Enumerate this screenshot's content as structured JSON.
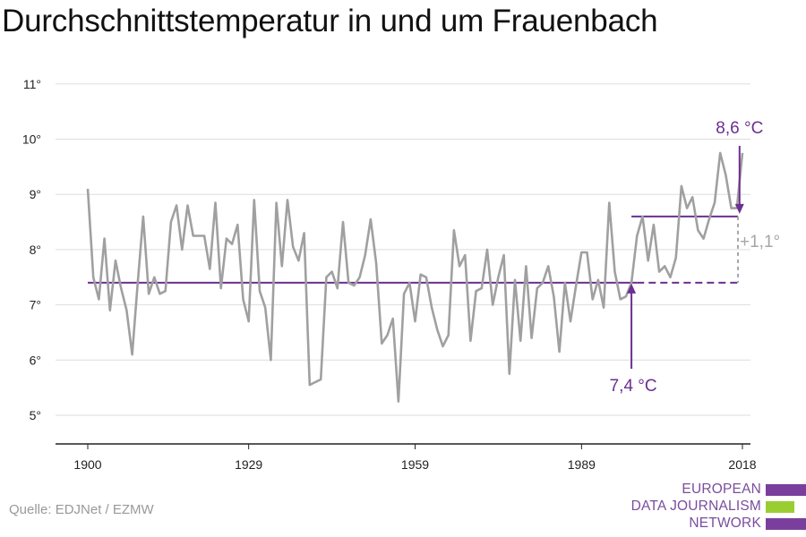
{
  "title": "Durchschnittstemperatur in und um Frauenbach",
  "source": "Quelle: EDJNet / EZMW",
  "logo": {
    "lines": [
      "EUROPEAN",
      "DATA JOURNALISM",
      "NETWORK"
    ],
    "colors": [
      "#7a3f9d",
      "#9acd32",
      "#7a3f9d"
    ]
  },
  "colors": {
    "series": "#a0a0a0",
    "accent": "#6b2f91",
    "grid": "#dddddd",
    "delta": "#a6a6a6"
  },
  "chart_data": {
    "type": "line",
    "title": "Durchschnittstemperatur in und um Frauenbach",
    "xlabel": "",
    "ylabel": "",
    "x_ticks": [
      1900,
      1929,
      1959,
      1989,
      2018
    ],
    "y_ticks": [
      5,
      6,
      7,
      8,
      9,
      10,
      11
    ],
    "y_tick_labels": [
      "5°",
      "6°",
      "7°",
      "8°",
      "9°",
      "10°",
      "11°"
    ],
    "xlim": [
      1900,
      2018
    ],
    "ylim": [
      4.5,
      11.3
    ],
    "grid": true,
    "series": [
      {
        "x": [
          1900,
          1901,
          1902,
          1903,
          1904,
          1905,
          1906,
          1907,
          1908,
          1909,
          1910,
          1911,
          1912,
          1913,
          1914,
          1915,
          1916,
          1917,
          1918,
          1919,
          1920,
          1921,
          1922,
          1923,
          1924,
          1925,
          1926,
          1927,
          1928,
          1929,
          1930,
          1931,
          1932,
          1933,
          1934,
          1935,
          1936,
          1937,
          1938,
          1939,
          1940,
          1941,
          1942,
          1943,
          1944,
          1945,
          1946,
          1947,
          1948,
          1949,
          1950,
          1951,
          1952,
          1953,
          1954,
          1955,
          1956,
          1957,
          1958,
          1959,
          1960,
          1961,
          1962,
          1963,
          1964,
          1965,
          1966,
          1967,
          1968,
          1969,
          1970,
          1971,
          1972,
          1973,
          1974,
          1975,
          1976,
          1977,
          1978,
          1979,
          1980,
          1981,
          1982,
          1983,
          1984,
          1985,
          1986,
          1987,
          1988,
          1989,
          1990,
          1991,
          1992,
          1993,
          1994,
          1995,
          1996,
          1997,
          1998,
          1999,
          2000,
          2001,
          2002,
          2003,
          2004,
          2005,
          2006,
          2007,
          2008,
          2009,
          2010,
          2011,
          2012,
          2013,
          2014,
          2015,
          2016,
          2017,
          2018
        ],
        "values": [
          9.1,
          7.5,
          7.1,
          8.2,
          6.9,
          7.8,
          7.3,
          6.9,
          6.1,
          7.4,
          8.6,
          7.2,
          7.5,
          7.2,
          7.25,
          8.5,
          8.8,
          8.0,
          8.8,
          8.25,
          8.25,
          8.25,
          7.65,
          8.85,
          7.3,
          8.2,
          8.1,
          8.45,
          7.1,
          6.7,
          8.9,
          7.25,
          6.95,
          6.0,
          8.85,
          7.7,
          8.9,
          8.05,
          7.8,
          8.3,
          5.55,
          5.6,
          5.65,
          7.5,
          7.6,
          7.3,
          8.5,
          7.4,
          7.35,
          7.5,
          7.9,
          8.55,
          7.75,
          6.3,
          6.45,
          6.75,
          5.25,
          7.2,
          7.4,
          6.7,
          7.55,
          7.5,
          6.95,
          6.55,
          6.25,
          6.45,
          8.35,
          7.7,
          7.9,
          6.35,
          7.25,
          7.3,
          8.0,
          7.0,
          7.5,
          7.9,
          5.75,
          7.45,
          6.35,
          7.7,
          6.4,
          7.3,
          7.4,
          7.7,
          7.15,
          6.15,
          7.4,
          6.7,
          7.35,
          7.95,
          7.95,
          7.1,
          7.45,
          6.95,
          8.85,
          7.6,
          7.1,
          7.15,
          7.4,
          8.25,
          8.6,
          7.8,
          8.45,
          7.6,
          7.7,
          7.5,
          7.85,
          9.15,
          8.75,
          8.95,
          8.35,
          8.2,
          8.55,
          8.85,
          9.75,
          9.35,
          8.75,
          8.75,
          9.75
        ]
      }
    ],
    "baseline": 7.4,
    "baseline_label": "7,4 °C",
    "recent_avg": 8.6,
    "recent_avg_start": 1999,
    "recent_label": "8,6 °C",
    "delta_label": "+1,1°",
    "arrow_low_x": 1998,
    "arrow_high_x": 2017
  }
}
